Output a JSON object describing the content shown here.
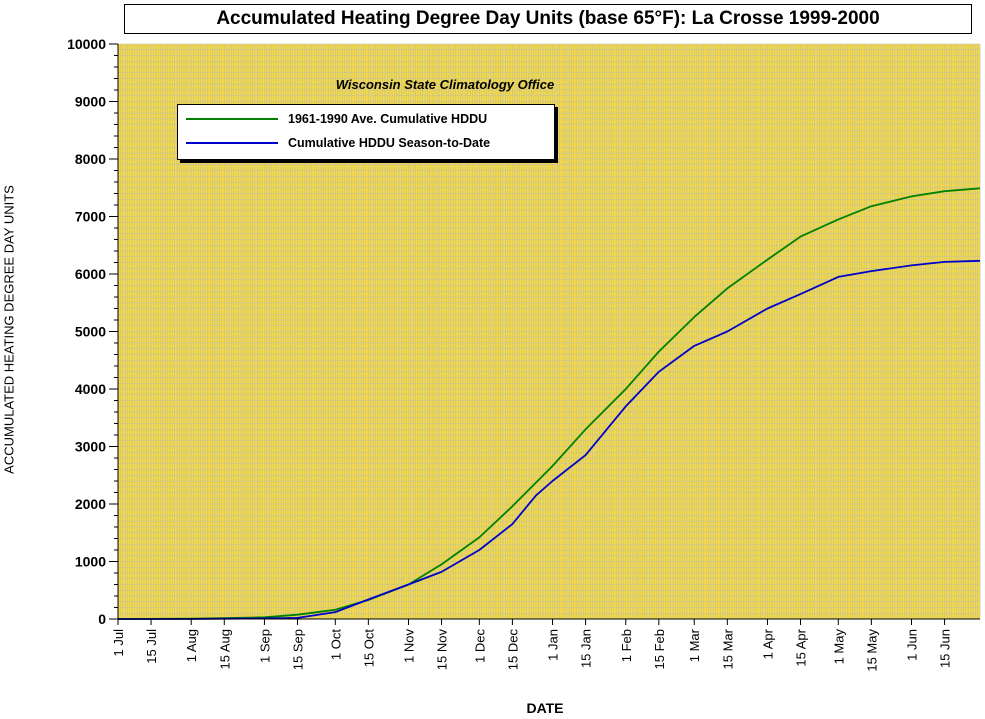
{
  "chart_data": {
    "type": "line",
    "title": "Accumulated Heating Degree Day Units (base 65°F): La Crosse 1999-2000",
    "subtitle": "Wisconsin State Climatology Office",
    "xlabel": "DATE",
    "ylabel": "ACCUMULATED HEATING DEGREE DAY UNITS",
    "ylim": [
      0,
      10000
    ],
    "yticks": [
      0,
      1000,
      2000,
      3000,
      4000,
      5000,
      6000,
      7000,
      8000,
      9000,
      10000
    ],
    "xlim": [
      "1999-07-01",
      "2000-06-30"
    ],
    "xtick_labels": [
      "1 Jul",
      "15 Jul",
      "1 Aug",
      "15 Aug",
      "1 Sep",
      "15 Sep",
      "1 Oct",
      "15 Oct",
      "1 Nov",
      "15 Nov",
      "1 Dec",
      "15 Dec",
      "1 Jan",
      "15 Jan",
      "1 Feb",
      "15 Feb",
      "1 Mar",
      "15 Mar",
      "1 Apr",
      "15 Apr",
      "1 May",
      "15 May",
      "1 Jun",
      "15 Jun"
    ],
    "xtick_dates": [
      "1999-07-01",
      "1999-07-15",
      "1999-08-01",
      "1999-08-15",
      "1999-09-01",
      "1999-09-15",
      "1999-10-01",
      "1999-10-15",
      "1999-11-01",
      "1999-11-15",
      "1999-12-01",
      "1999-12-15",
      "2000-01-01",
      "2000-01-15",
      "2000-02-01",
      "2000-02-15",
      "2000-03-01",
      "2000-03-15",
      "2000-04-01",
      "2000-04-15",
      "2000-05-01",
      "2000-05-15",
      "2000-06-01",
      "2000-06-15"
    ],
    "grid": true,
    "legend_position": "top-left",
    "series": [
      {
        "name": "1961-1990 Ave. Cumulative HDDU",
        "color": "#008000",
        "points": [
          [
            "1999-07-01",
            0
          ],
          [
            "1999-08-01",
            5
          ],
          [
            "1999-08-15",
            15
          ],
          [
            "1999-09-01",
            30
          ],
          [
            "1999-09-15",
            75
          ],
          [
            "1999-10-01",
            160
          ],
          [
            "1999-10-15",
            330
          ],
          [
            "1999-11-01",
            600
          ],
          [
            "1999-11-15",
            950
          ],
          [
            "1999-12-01",
            1420
          ],
          [
            "1999-12-15",
            1960
          ],
          [
            "2000-01-01",
            2660
          ],
          [
            "2000-01-15",
            3300
          ],
          [
            "2000-02-01",
            4000
          ],
          [
            "2000-02-15",
            4650
          ],
          [
            "2000-03-01",
            5250
          ],
          [
            "2000-03-15",
            5750
          ],
          [
            "2000-04-01",
            6250
          ],
          [
            "2000-04-15",
            6650
          ],
          [
            "2000-05-01",
            6950
          ],
          [
            "2000-05-15",
            7180
          ],
          [
            "2000-06-01",
            7350
          ],
          [
            "2000-06-15",
            7440
          ],
          [
            "2000-06-30",
            7490
          ]
        ]
      },
      {
        "name": "Cumulative HDDU Season-to-Date",
        "color": "#0000cc",
        "points": [
          [
            "1999-07-01",
            0
          ],
          [
            "1999-08-01",
            0
          ],
          [
            "1999-08-15",
            5
          ],
          [
            "1999-09-01",
            10
          ],
          [
            "1999-09-15",
            20
          ],
          [
            "1999-10-01",
            120
          ],
          [
            "1999-10-15",
            340
          ],
          [
            "1999-11-01",
            600
          ],
          [
            "1999-11-15",
            820
          ],
          [
            "1999-12-01",
            1200
          ],
          [
            "1999-12-15",
            1650
          ],
          [
            "1999-12-25",
            2150
          ],
          [
            "2000-01-01",
            2400
          ],
          [
            "2000-01-15",
            2850
          ],
          [
            "2000-02-01",
            3700
          ],
          [
            "2000-02-15",
            4300
          ],
          [
            "2000-03-01",
            4750
          ],
          [
            "2000-03-15",
            5000
          ],
          [
            "2000-04-01",
            5400
          ],
          [
            "2000-04-15",
            5650
          ],
          [
            "2000-05-01",
            5950
          ],
          [
            "2000-05-15",
            6050
          ],
          [
            "2000-06-01",
            6150
          ],
          [
            "2000-06-15",
            6210
          ],
          [
            "2000-06-30",
            6230
          ]
        ]
      }
    ]
  }
}
